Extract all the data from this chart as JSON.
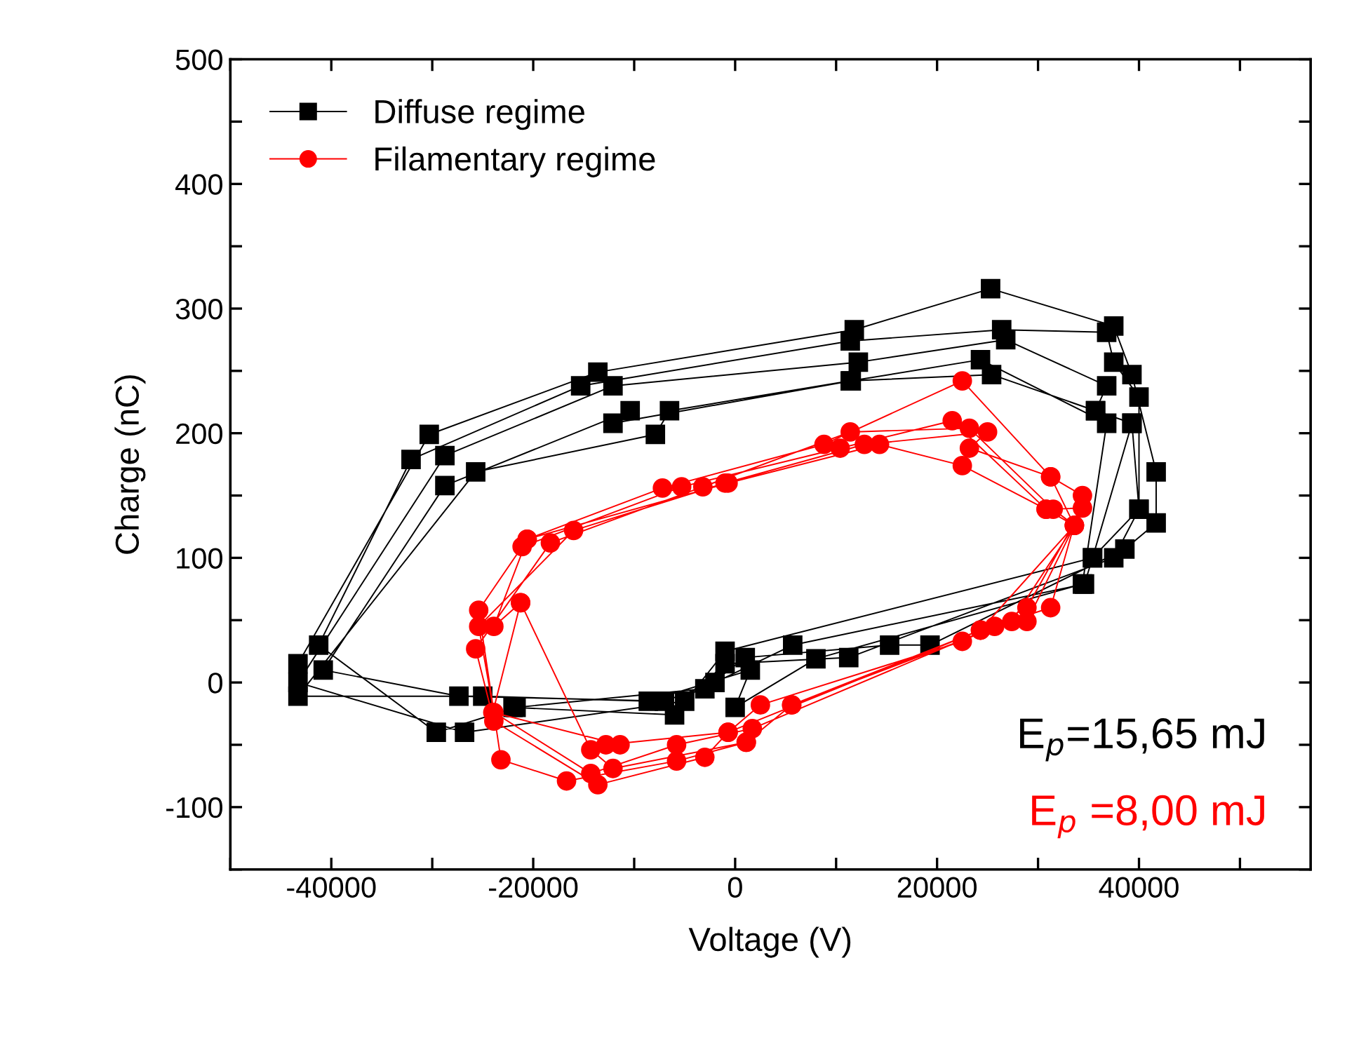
{
  "chart_data": {
    "type": "line",
    "xlabel": "Voltage (V)",
    "ylabel": "Charge (nC)",
    "xlim": [
      -50000,
      57000
    ],
    "ylim": [
      -150,
      500
    ],
    "xticks": [
      {
        "value": -50000,
        "label": null
      },
      -40000,
      {
        "value": -30000,
        "label": null
      },
      -20000,
      {
        "value": -10000,
        "label": null
      },
      0,
      {
        "value": 10000,
        "label": null
      },
      20000,
      {
        "value": 30000,
        "label": null
      },
      40000,
      {
        "value": 50000,
        "label": null
      }
    ],
    "yticks": [
      {
        "value": -150,
        "label": null
      },
      -100,
      {
        "value": -50,
        "label": null
      },
      0,
      {
        "value": 50,
        "label": null
      },
      100,
      {
        "value": 150,
        "label": null
      },
      200,
      {
        "value": 250,
        "label": null
      },
      300,
      {
        "value": 350,
        "label": null
      },
      400,
      {
        "value": 450,
        "label": null
      },
      500
    ],
    "grid": false,
    "legend": "top left",
    "line_style": "solid",
    "annotations": [
      "E$_{p}$=15,65 mJ",
      "E$_{p}$ =8,00 mJ"
    ],
    "series": [
      {
        "name": "Diffuse regime",
        "color": "#000000",
        "marker": "square",
        "x": [
          -43300,
          -30300,
          -13600,
          11800,
          25300,
          37500,
          39300,
          41700,
          41700,
          38600,
          19300,
          15300,
          1000,
          -3000,
          -21700,
          -29600,
          -41250,
          -32100,
          -15300,
          11400,
          26400,
          36800,
          37500,
          40000,
          40000,
          37500,
          11250,
          -1000,
          -5000,
          -26800,
          -43300,
          -28750,
          -12100,
          12200,
          26800,
          36800,
          35700,
          39300,
          35400,
          34600,
          5700,
          -2000,
          -7000,
          -27360,
          -40800,
          -28750,
          -10400,
          -12100,
          11500,
          24300,
          36800,
          34400,
          8000,
          0,
          1500,
          -8600,
          -25000,
          -43300,
          -25700,
          -7900,
          -6500,
          11400,
          25400,
          35700,
          39300,
          40000,
          35400,
          -1000,
          -6000,
          -22000
        ],
        "values": [
          15,
          199,
          249,
          283,
          316,
          286,
          247,
          169,
          128,
          107,
          30,
          30,
          20,
          -5,
          -20,
          -40,
          30,
          179,
          238,
          274,
          283,
          281,
          257,
          229,
          139,
          100,
          20,
          15,
          -15,
          -40,
          0,
          182,
          238,
          257,
          275,
          238,
          218,
          208,
          100,
          79,
          30,
          0,
          -15,
          -11,
          10,
          158,
          218,
          208,
          242,
          259,
          208,
          79,
          19,
          -20,
          10,
          -15,
          -11,
          -11,
          169,
          199,
          218,
          242,
          247,
          218,
          208,
          139,
          100,
          25,
          -26,
          -20
        ]
      },
      {
        "name": "Filamentary regime",
        "color": "#ff0000",
        "marker": "circle",
        "x": [
          -20600,
          -7200,
          8800,
          22500,
          31250,
          34400,
          31250,
          24300,
          5600,
          1100,
          -5800,
          -16700,
          -23200,
          -25400,
          -21100,
          -5300,
          10400,
          21500,
          30800,
          34400,
          28900,
          22500,
          2500,
          -700,
          -3000,
          -13600,
          -23900,
          -25700,
          -18300,
          -3200,
          11400,
          23200,
          31500,
          33600,
          28900,
          25700,
          1700,
          -5800,
          -14300,
          -23900,
          -25400,
          -16000,
          -1000,
          12800,
          25000,
          23200,
          31250,
          33600,
          27400,
          5600,
          1100,
          -12100,
          -14300,
          -21250,
          -23900,
          -20600,
          -700,
          14300,
          22500,
          30800,
          33600,
          24300,
          -700,
          -12800,
          -11400,
          -24000,
          -21250
        ],
        "values": [
          115,
          156,
          191,
          242,
          165,
          150,
          60,
          42,
          -18,
          -48,
          -63,
          -79,
          -62,
          58,
          109,
          157,
          188,
          210,
          139,
          140,
          60,
          33,
          -18,
          -40,
          -60,
          -82,
          -31,
          27,
          112,
          157,
          201,
          204,
          139,
          126,
          49,
          45,
          -37,
          -50,
          -73,
          -24,
          45,
          122,
          160,
          191,
          201,
          188,
          165,
          126,
          49,
          -18,
          -48,
          -69,
          -54,
          64,
          45,
          115,
          160,
          191,
          174,
          139,
          126,
          42,
          -40,
          -50,
          -50,
          -24,
          64
        ]
      }
    ]
  }
}
